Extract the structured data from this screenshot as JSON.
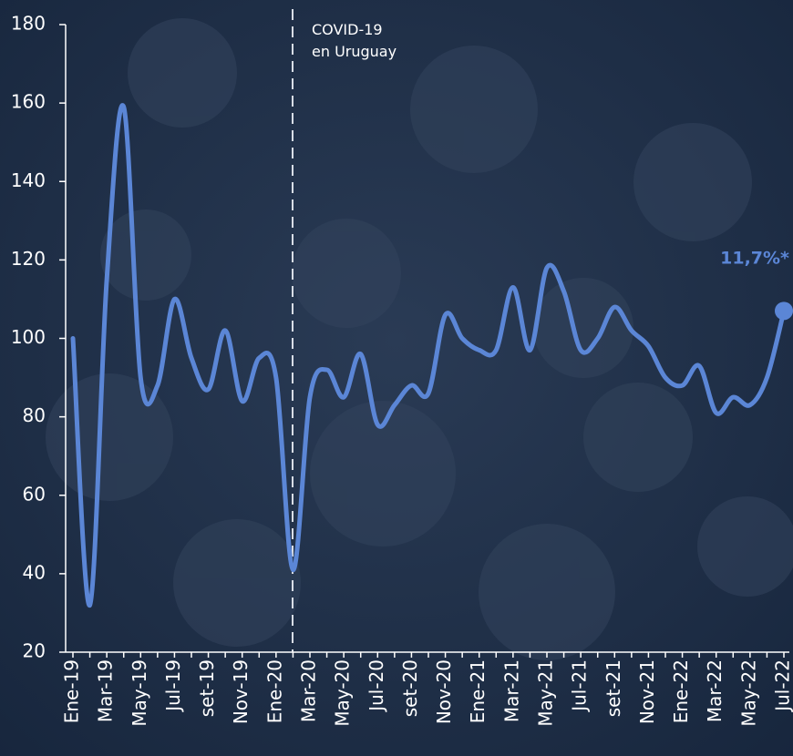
{
  "chart_data": {
    "type": "line",
    "categories": [
      "Ene-19",
      null,
      "Mar-19",
      null,
      "May-19",
      null,
      "Jul-19",
      null,
      "set-19",
      null,
      "Nov-19",
      null,
      "Ene-20",
      null,
      "Mar-20",
      null,
      "May-20",
      null,
      "Jul-20",
      null,
      "set-20",
      null,
      "Nov-20",
      null,
      "Ene-21",
      null,
      "Mar-21",
      null,
      "May-21",
      null,
      "Jul-21",
      null,
      "set-21",
      null,
      "Nov-21",
      null,
      "Ene-22",
      null,
      "Mar-22",
      null,
      "May-22",
      null,
      "Jul-22"
    ],
    "series": [
      {
        "color": "#5b86d6",
        "values": [
          100,
          32,
          115,
          159,
          90,
          88,
          110,
          95,
          87,
          102,
          84,
          95,
          90,
          41,
          85,
          92,
          85,
          96,
          78,
          83,
          88,
          86,
          106,
          100,
          97,
          97,
          113,
          97,
          118,
          112,
          97,
          100,
          108,
          102,
          98,
          90,
          88,
          93,
          81,
          85,
          83,
          90,
          107
        ]
      }
    ],
    "ylim": [
      20,
      180
    ],
    "yticks": [
      20,
      40,
      60,
      80,
      100,
      120,
      140,
      160,
      180
    ],
    "annotation": [
      "COVID-19",
      "en Uruguay"
    ],
    "end_label": "11,7%*"
  }
}
